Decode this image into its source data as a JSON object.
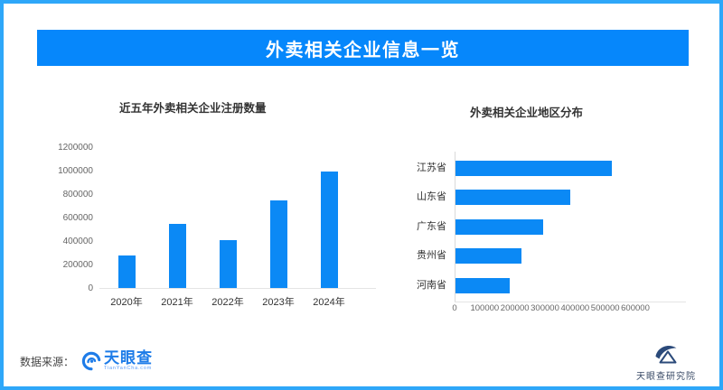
{
  "header": {
    "title": "外卖相关企业信息一览"
  },
  "chart_data": [
    {
      "type": "bar",
      "orientation": "vertical",
      "title": "近五年外卖相关企业注册数量",
      "categories": [
        "2020年",
        "2021年",
        "2022年",
        "2023年",
        "2024年"
      ],
      "values": [
        280000,
        550000,
        410000,
        750000,
        990000
      ],
      "yticks": [
        0,
        200000,
        400000,
        600000,
        800000,
        1000000,
        1200000
      ],
      "ylim": [
        0,
        1200000
      ],
      "xlabel": "",
      "ylabel": "",
      "grid": false,
      "legend": "none",
      "bar_color": "#0b89f5"
    },
    {
      "type": "bar",
      "orientation": "horizontal",
      "title": "外卖相关企业地区分布",
      "categories": [
        "江苏省",
        "山东省",
        "广东省",
        "贵州省",
        "河南省"
      ],
      "values": [
        520000,
        380000,
        290000,
        220000,
        180000
      ],
      "xticks": [
        0,
        100000,
        200000,
        300000,
        400000,
        500000,
        600000
      ],
      "xlim": [
        0,
        600000
      ],
      "xlabel": "",
      "ylabel": "",
      "grid": false,
      "legend": "none",
      "bar_color": "#0b89f5"
    }
  ],
  "footer": {
    "source_label": "数据来源：",
    "brand_name": "天眼查",
    "brand_sub": "TianYanCha.com",
    "institute": "天眼查研究院"
  },
  "colors": {
    "frame": "#2ea7f9",
    "banner": "#0687fb",
    "bar": "#0b89f5",
    "brand_blue": "#1e7ce8",
    "institute_navy": "#2b4a7a"
  }
}
